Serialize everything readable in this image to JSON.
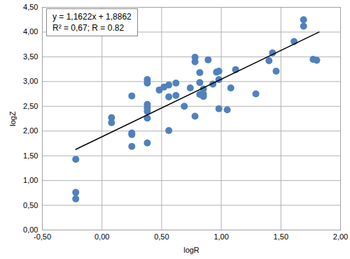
{
  "chart_data": {
    "type": "scatter",
    "x_label": "logR",
    "y_label": "logZ",
    "annotations": [
      "y = 1,1622x + 1,8862",
      "R² = 0,67; R = 0.82"
    ],
    "xlim": [
      -0.5,
      2.0
    ],
    "ylim": [
      0,
      4.5
    ],
    "xticks": [
      {
        "value": -0.5,
        "label": "-0,50"
      },
      {
        "value": 0,
        "label": "0,00"
      },
      {
        "value": 0.5,
        "label": "0,50"
      },
      {
        "value": 1,
        "label": "1,00"
      },
      {
        "value": 1.5,
        "label": "1,50"
      },
      {
        "value": 2,
        "label": "2,00"
      }
    ],
    "yticks": [
      {
        "value": 0,
        "label": "0,00"
      },
      {
        "value": 0.5,
        "label": "0,50"
      },
      {
        "value": 1,
        "label": "1,00"
      },
      {
        "value": 1.5,
        "label": "1,50"
      },
      {
        "value": 2,
        "label": "2,00"
      },
      {
        "value": 2.5,
        "label": "2,50"
      },
      {
        "value": 3,
        "label": "3,00"
      },
      {
        "value": 3.5,
        "label": "3,50"
      },
      {
        "value": 4,
        "label": "4,00"
      },
      {
        "value": 4.5,
        "label": "4,50"
      }
    ],
    "grid": true,
    "series": [
      {
        "type": "scatter",
        "marker": "circle",
        "color": "#4f81bd",
        "x": [
          -0.22,
          -0.22,
          -0.22,
          0.08,
          0.08,
          0.25,
          0.25,
          0.25,
          0.25,
          0.38,
          0.38,
          0.38,
          0.38,
          0.38,
          0.38,
          0.38,
          0.48,
          0.52,
          0.56,
          0.56,
          0.56,
          0.62,
          0.62,
          0.69,
          0.74,
          0.78,
          0.78,
          0.78,
          0.82,
          0.82,
          0.82,
          0.85,
          0.85,
          0.85,
          0.89,
          0.93,
          0.96,
          0.98,
          0.98,
          0.98,
          1.05,
          1.08,
          1.12,
          1.29,
          1.4,
          1.43,
          1.46,
          1.61,
          1.69,
          1.69,
          1.77,
          1.8
        ],
        "values": [
          1.43,
          0.76,
          0.63,
          2.27,
          2.17,
          2.71,
          1.96,
          1.93,
          1.69,
          3.04,
          2.97,
          2.54,
          2.47,
          2.4,
          2.26,
          1.76,
          2.83,
          2.89,
          2.93,
          2.69,
          2.01,
          2.97,
          2.72,
          2.5,
          2.87,
          3.49,
          3.4,
          2.3,
          3.18,
          2.98,
          2.74,
          2.85,
          2.75,
          2.7,
          3.44,
          2.95,
          3.19,
          3.21,
          3.04,
          2.45,
          2.43,
          2.87,
          3.24,
          2.75,
          3.42,
          3.58,
          3.21,
          3.81,
          4.25,
          4.12,
          3.45,
          3.43
        ]
      },
      {
        "type": "line",
        "line_style": "solid",
        "color": "#000000",
        "x": [
          -0.22,
          1.82
        ],
        "values": [
          1.63,
          4.0
        ]
      }
    ]
  }
}
